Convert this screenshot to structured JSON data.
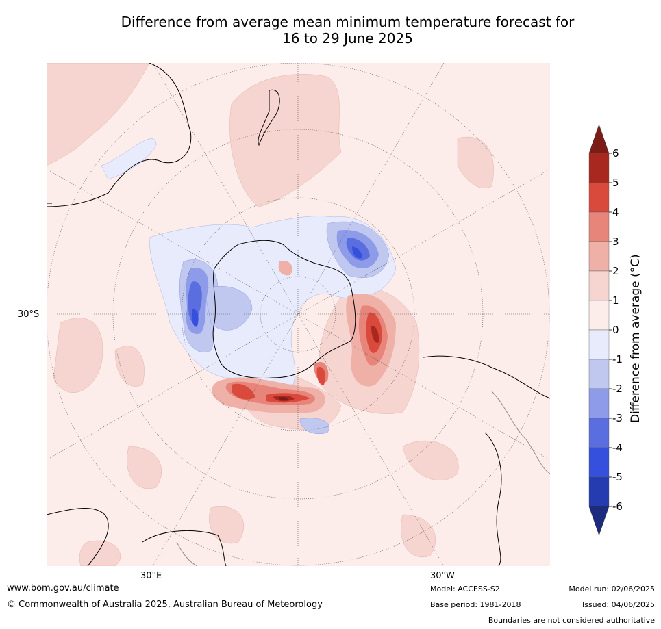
{
  "title": {
    "line1": "Difference from average mean minimum temperature forecast for",
    "line2": "16 to 29 June 2025"
  },
  "axis_labels": {
    "lat": "30°S",
    "lon_east": "30°E",
    "lon_west": "30°W"
  },
  "colorbar": {
    "label": "Difference from average (°C)",
    "ticks": [
      "6",
      "5",
      "4",
      "3",
      "2",
      "1",
      "0",
      "-1",
      "-2",
      "-3",
      "-4",
      "-5",
      "-6"
    ],
    "colors_top_to_bottom": [
      "#7b1c16",
      "#a8281f",
      "#d94a3d",
      "#e8857a",
      "#efb0a8",
      "#f6d5d1",
      "#fcecea",
      "#e7ebfb",
      "#c1c8f0",
      "#8d9be8",
      "#5b6ee0",
      "#3450dc",
      "#253bb0",
      "#1c2a80"
    ]
  },
  "footer": {
    "website": "www.bom.gov.au/climate",
    "copyright": "© Commonwealth of Australia 2025, Australian Bureau of Meteorology",
    "model": "Model: ACCESS-S2",
    "base_period": "Base period: 1981-2018",
    "model_run": "Model run: 02/06/2025",
    "issued": "Issued: 04/06/2025",
    "disclaimer": "Boundaries are not considered authoritative"
  }
}
